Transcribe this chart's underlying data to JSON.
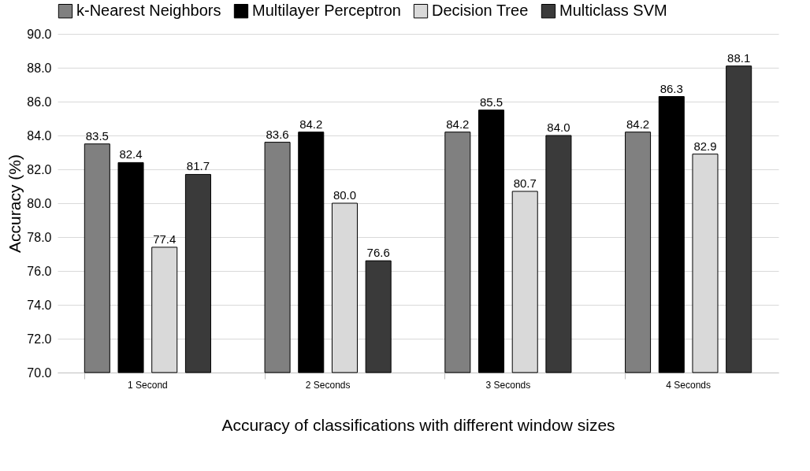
{
  "chart_data": {
    "type": "bar",
    "xlabel": "Accuracy of classifications with different window sizes",
    "ylabel": "Accuracy (%)",
    "categories": [
      "1 Second",
      "2 Seconds",
      "3 Seconds",
      "4 Seconds"
    ],
    "series": [
      {
        "name": "k-Nearest Neighbors",
        "color": "#808080",
        "values": [
          83.5,
          83.6,
          84.2,
          84.2
        ],
        "value_labels": [
          "83.5",
          "83.6",
          "84.2",
          "84.2"
        ]
      },
      {
        "name": "Multilayer Perceptron",
        "color": "#000000",
        "values": [
          82.4,
          84.2,
          85.5,
          86.3
        ],
        "value_labels": [
          "82.4",
          "84.2",
          "85.5",
          "86.3"
        ]
      },
      {
        "name": "Decision Tree",
        "color": "#d9d9d9",
        "values": [
          77.4,
          80.0,
          80.7,
          82.9
        ],
        "value_labels": [
          "77.4",
          "80.0",
          "80.7",
          "82.9"
        ]
      },
      {
        "name": "Multiclass SVM",
        "color": "#3a3a3a",
        "values": [
          81.7,
          76.6,
          84.0,
          88.1
        ],
        "value_labels": [
          "81.7",
          "76.6",
          "84.0",
          "88.1"
        ]
      }
    ],
    "ylim": [
      70,
      90
    ],
    "yticks": [
      {
        "value": 70,
        "label": "70.0"
      },
      {
        "value": 72,
        "label": "72.0"
      },
      {
        "value": 74,
        "label": "74.0"
      },
      {
        "value": 76,
        "label": "76.0"
      },
      {
        "value": 78,
        "label": "78.0"
      },
      {
        "value": 80,
        "label": "80.0"
      },
      {
        "value": 82,
        "label": "82.0"
      },
      {
        "value": 84,
        "label": "84.0"
      },
      {
        "value": 86,
        "label": "86.0"
      },
      {
        "value": 88,
        "label": "88.0"
      },
      {
        "value": 90,
        "label": "90.0"
      }
    ],
    "grid": "y",
    "legend": "top"
  }
}
